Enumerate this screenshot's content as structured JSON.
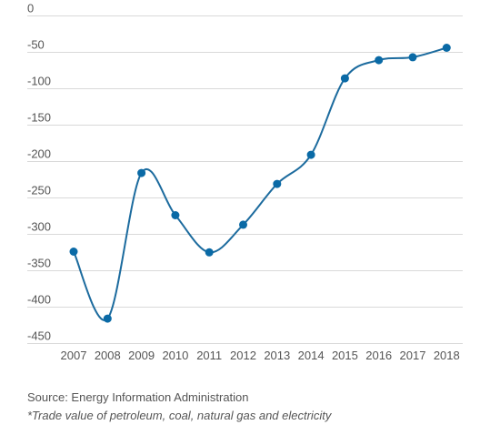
{
  "chart_data": {
    "type": "line",
    "title": "",
    "xlabel": "",
    "ylabel": "",
    "x": [
      "2007",
      "2008",
      "2009",
      "2010",
      "2011",
      "2012",
      "2013",
      "2014",
      "2015",
      "2016",
      "2017",
      "2018"
    ],
    "series": [
      {
        "values": [
          -325,
          -417,
          -217,
          -275,
          -326,
          -288,
          -232,
          -192,
          -87,
          -62,
          -58,
          -45
        ],
        "color": "#1c6b9e"
      }
    ],
    "yticks": [
      0,
      -50,
      -100,
      -150,
      -200,
      -250,
      -300,
      -350,
      -400,
      -450
    ],
    "ylim": [
      -460,
      0
    ],
    "grid": true,
    "legend": "none",
    "smooth": true
  },
  "footer": {
    "source": "Source: Energy Information Administration",
    "footnote": "*Trade value of petroleum, coal, natural gas and electricity"
  }
}
